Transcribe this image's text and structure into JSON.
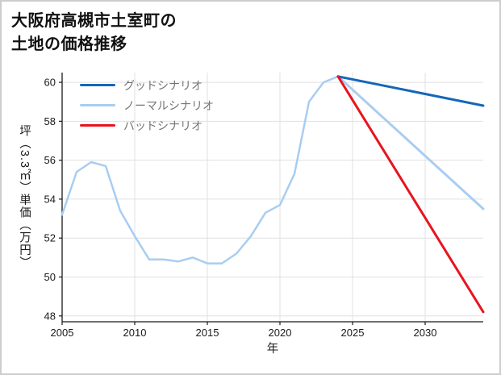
{
  "chart_data": {
    "type": "line",
    "title": "大阪府高槻市土室町の土地の価格推移",
    "title_lines": [
      "大阪府高槻市土室町の",
      "土地の価格推移"
    ],
    "xlabel": "年",
    "ylabel": "坪（3.3㎡）単価（万円）",
    "xlim": [
      2005,
      2034
    ],
    "ylim": [
      47.7,
      60.5
    ],
    "x_ticks": [
      "2005",
      "2010",
      "2015",
      "2020",
      "2025",
      "2030"
    ],
    "y_ticks": [
      "48",
      "50",
      "52",
      "54",
      "56",
      "58",
      "60"
    ],
    "grid": true,
    "grid_color": "#e0e0e0",
    "axis_color": "#1a1a1a",
    "legend_position": "upper-left",
    "legend": [
      {
        "label": "グッドシナリオ",
        "color": "#1467b8"
      },
      {
        "label": "ノーマルシナリオ",
        "color": "#a9cdf1"
      },
      {
        "label": "バッドシナリオ",
        "color": "#e8141e"
      }
    ],
    "series": [
      {
        "name": "history",
        "color": "#a9cdf1",
        "width": 2.5,
        "x": [
          2005,
          2006,
          2007,
          2008,
          2009,
          2010,
          2011,
          2012,
          2013,
          2014,
          2015,
          2016,
          2017,
          2018,
          2019,
          2020,
          2021,
          2022,
          2023,
          2024
        ],
        "values": [
          53.2,
          55.4,
          55.9,
          55.7,
          53.4,
          52.1,
          50.9,
          50.9,
          50.8,
          51.0,
          50.7,
          50.7,
          51.2,
          52.1,
          53.3,
          53.7,
          55.3,
          59.0,
          60.0,
          60.3
        ]
      },
      {
        "name": "ノーマルシナリオ",
        "color": "#a9cdf1",
        "width": 3,
        "x": [
          2024,
          2034
        ],
        "values": [
          60.3,
          53.5
        ]
      },
      {
        "name": "グッドシナリオ",
        "color": "#1467b8",
        "width": 3,
        "x": [
          2024,
          2034
        ],
        "values": [
          60.3,
          58.8
        ]
      },
      {
        "name": "バッドシナリオ",
        "color": "#e8141e",
        "width": 3,
        "x": [
          2024,
          2034
        ],
        "values": [
          60.3,
          48.2
        ]
      }
    ]
  }
}
